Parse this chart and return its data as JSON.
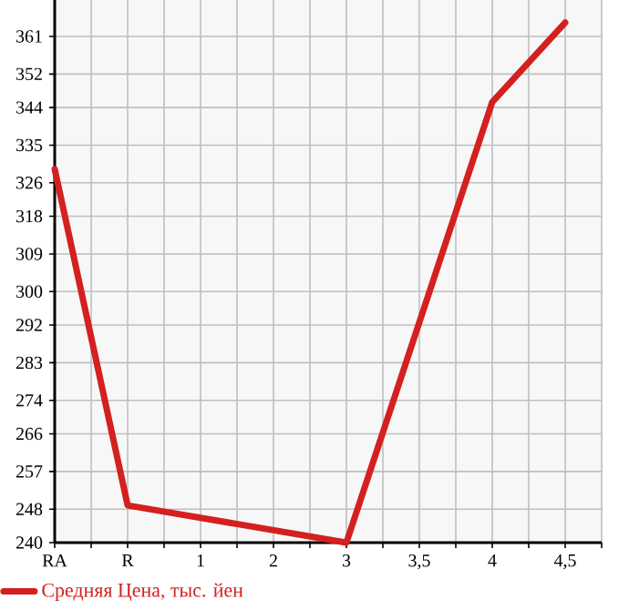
{
  "chart_data": {
    "type": "line",
    "categories": [
      "RA",
      "R",
      "1",
      "2",
      "3",
      "3,5",
      "4",
      "4,5"
    ],
    "series": [
      {
        "name": "Средняя Цена, тыс. йен",
        "color": "#d42020",
        "values": [
          329.3,
          248.9,
          null,
          null,
          240,
          null,
          345.3,
          364.3
        ]
      }
    ],
    "ylim": [
      240,
      369.7
    ],
    "yticks": [
      240,
      248,
      257,
      266,
      274,
      283,
      292,
      300,
      309,
      318,
      326,
      335,
      344,
      352,
      361
    ],
    "grid": true,
    "legend": "bottom",
    "marker": "none",
    "line_style": "solid"
  }
}
